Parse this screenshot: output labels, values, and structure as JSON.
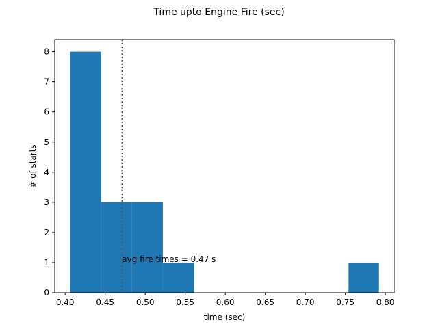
{
  "chart_data": {
    "type": "bar",
    "title": "Time upto Engine Fire (sec)",
    "xlabel": "time (sec)",
    "ylabel": "# of starts",
    "xlim": [
      0.387,
      0.811
    ],
    "ylim": [
      0,
      8.4
    ],
    "xticks": [
      0.4,
      0.45,
      0.5,
      0.55,
      0.6,
      0.65,
      0.7,
      0.75,
      0.8
    ],
    "xtick_labels": [
      "0.40",
      "0.45",
      "0.50",
      "0.55",
      "0.60",
      "0.65",
      "0.70",
      "0.75",
      "0.80"
    ],
    "yticks": [
      0,
      1,
      2,
      3,
      4,
      5,
      6,
      7,
      8
    ],
    "ytick_labels": [
      "0",
      "1",
      "2",
      "3",
      "4",
      "5",
      "6",
      "7",
      "8"
    ],
    "bins": [
      {
        "x0": 0.406,
        "x1": 0.445,
        "count": 8
      },
      {
        "x0": 0.445,
        "x1": 0.483,
        "count": 3
      },
      {
        "x0": 0.483,
        "x1": 0.522,
        "count": 3
      },
      {
        "x0": 0.522,
        "x1": 0.561,
        "count": 1
      },
      {
        "x0": 0.561,
        "x1": 0.599,
        "count": 0
      },
      {
        "x0": 0.599,
        "x1": 0.638,
        "count": 0
      },
      {
        "x0": 0.638,
        "x1": 0.677,
        "count": 0
      },
      {
        "x0": 0.677,
        "x1": 0.715,
        "count": 0
      },
      {
        "x0": 0.715,
        "x1": 0.754,
        "count": 0
      },
      {
        "x0": 0.754,
        "x1": 0.792,
        "count": 1
      }
    ],
    "average_line": {
      "value": 0.471,
      "label": "avg fire times = 0.47 s",
      "label_y": 1.0
    },
    "bar_color": "#1f77b4",
    "avg_line_color": "#555555",
    "grid": false,
    "legend": "none"
  }
}
